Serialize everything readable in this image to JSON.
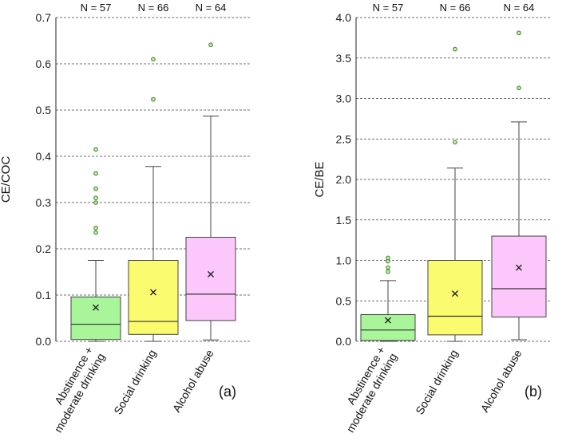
{
  "chart_data": [
    {
      "type": "box",
      "panel_label": "(a)",
      "ylabel": "CE/COC",
      "ylim": [
        0,
        0.7
      ],
      "yticks": [
        0.0,
        0.1,
        0.2,
        0.3,
        0.4,
        0.5,
        0.6,
        0.7
      ],
      "ytick_labels": [
        "0.0",
        "0.1",
        "0.2",
        "0.3",
        "0.4",
        "0.5",
        "0.6",
        "0.7"
      ],
      "grid": true,
      "groups": [
        {
          "category": "Abstinence + moderate drinking",
          "category_lines": [
            "Abstinence +",
            "moderate drinking"
          ],
          "n_label": "N = 57",
          "color": "#a8f59a",
          "min": 0.0,
          "q1": 0.004,
          "median": 0.037,
          "q3": 0.096,
          "max": 0.175,
          "mean": 0.073,
          "outliers": [
            0.235,
            0.245,
            0.3,
            0.31,
            0.33,
            0.363,
            0.415
          ]
        },
        {
          "category": "Social drinking",
          "category_lines": [
            "Social drinking"
          ],
          "n_label": "N = 66",
          "color": "#fbfb70",
          "min": 0.0,
          "q1": 0.015,
          "median": 0.043,
          "q3": 0.175,
          "max": 0.378,
          "mean": 0.106,
          "outliers": [
            0.523,
            0.61
          ]
        },
        {
          "category": "Alcohol abuse",
          "category_lines": [
            "Alcohol abuse"
          ],
          "n_label": "N = 64",
          "color": "#fcc8fc",
          "min": 0.003,
          "q1": 0.045,
          "median": 0.102,
          "q3": 0.225,
          "max": 0.487,
          "mean": 0.145,
          "outliers": [
            0.641
          ]
        }
      ]
    },
    {
      "type": "box",
      "panel_label": "(b)",
      "ylabel": "CE/BE",
      "ylim": [
        0,
        4.0
      ],
      "yticks": [
        0.0,
        0.5,
        1.0,
        1.5,
        2.0,
        2.5,
        3.0,
        3.5,
        4.0
      ],
      "ytick_labels": [
        "0.0",
        "0.5",
        "1.0",
        "1.5",
        "2.0",
        "2.5",
        "3.0",
        "3.5",
        "4.0"
      ],
      "grid": true,
      "groups": [
        {
          "category": "Abstinence + moderate drinking",
          "category_lines": [
            "Abstinence +",
            "moderate drinking"
          ],
          "n_label": "N = 57",
          "color": "#a8f59a",
          "min": 0.0,
          "q1": 0.01,
          "median": 0.14,
          "q3": 0.33,
          "max": 0.75,
          "mean": 0.26,
          "outliers": [
            0.86,
            0.91,
            0.99,
            1.03
          ]
        },
        {
          "category": "Social drinking",
          "category_lines": [
            "Social drinking"
          ],
          "n_label": "N = 66",
          "color": "#fbfb70",
          "min": 0.0,
          "q1": 0.08,
          "median": 0.31,
          "q3": 1.0,
          "max": 2.14,
          "mean": 0.59,
          "outliers": [
            2.46,
            3.61
          ]
        },
        {
          "category": "Alcohol abuse",
          "category_lines": [
            "Alcohol abuse"
          ],
          "n_label": "N = 64",
          "color": "#fcc8fc",
          "min": 0.02,
          "q1": 0.3,
          "median": 0.65,
          "q3": 1.3,
          "max": 2.71,
          "mean": 0.91,
          "outliers": [
            3.13,
            3.81
          ]
        }
      ]
    }
  ]
}
